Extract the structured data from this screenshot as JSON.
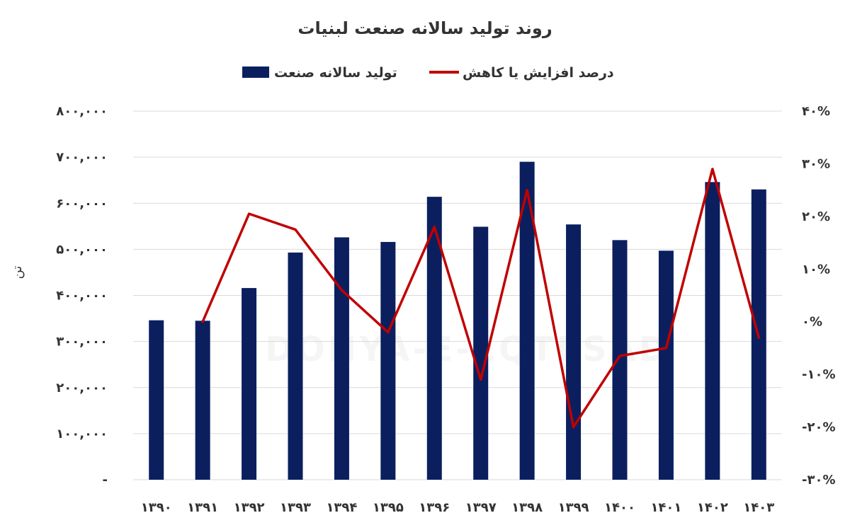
{
  "chart_data": {
    "type": "bar+line",
    "title": "روند تولید سالانه صنعت لبنیات",
    "ylabel_left": "تن",
    "watermark": "DONYA-E-EQTESAD",
    "categories": [
      "۱۳۹۰",
      "۱۳۹۱",
      "۱۳۹۲",
      "۱۳۹۳",
      "۱۳۹۴",
      "۱۳۹۵",
      "۱۳۹۶",
      "۱۳۹۷",
      "۱۳۹۸",
      "۱۳۹۹",
      "۱۴۰۰",
      "۱۴۰۱",
      "۱۴۰۲",
      "۱۴۰۳"
    ],
    "series": [
      {
        "name": "تولید سالانه صنعت",
        "type": "bar",
        "axis": "left",
        "color": "#0b1f5f",
        "values": [
          346000,
          345000,
          416000,
          493000,
          526000,
          516000,
          614000,
          549000,
          690000,
          554000,
          520000,
          497000,
          646000,
          630000
        ]
      },
      {
        "name": "درصد افزایش یا کاهش",
        "type": "line",
        "axis": "right",
        "color": "#c00000",
        "values": [
          null,
          0,
          20.5,
          17.5,
          6,
          -2,
          18,
          -11,
          25,
          -20,
          -6.5,
          -5,
          29,
          -3
        ]
      }
    ],
    "left_axis": {
      "min": 0,
      "max": 800000,
      "step": 100000,
      "tick_labels": [
        "-",
        "۱۰۰,۰۰۰",
        "۲۰۰,۰۰۰",
        "۳۰۰,۰۰۰",
        "۴۰۰,۰۰۰",
        "۵۰۰,۰۰۰",
        "۶۰۰,۰۰۰",
        "۷۰۰,۰۰۰",
        "۸۰۰,۰۰۰"
      ]
    },
    "right_axis": {
      "min": -30,
      "max": 40,
      "step": 10,
      "tick_labels": [
        "-۳۰%",
        "-۲۰%",
        "-۱۰%",
        "۰%",
        "۱۰%",
        "۲۰%",
        "۳۰%",
        "۴۰%"
      ]
    },
    "grid": true,
    "legend": "top-center"
  }
}
